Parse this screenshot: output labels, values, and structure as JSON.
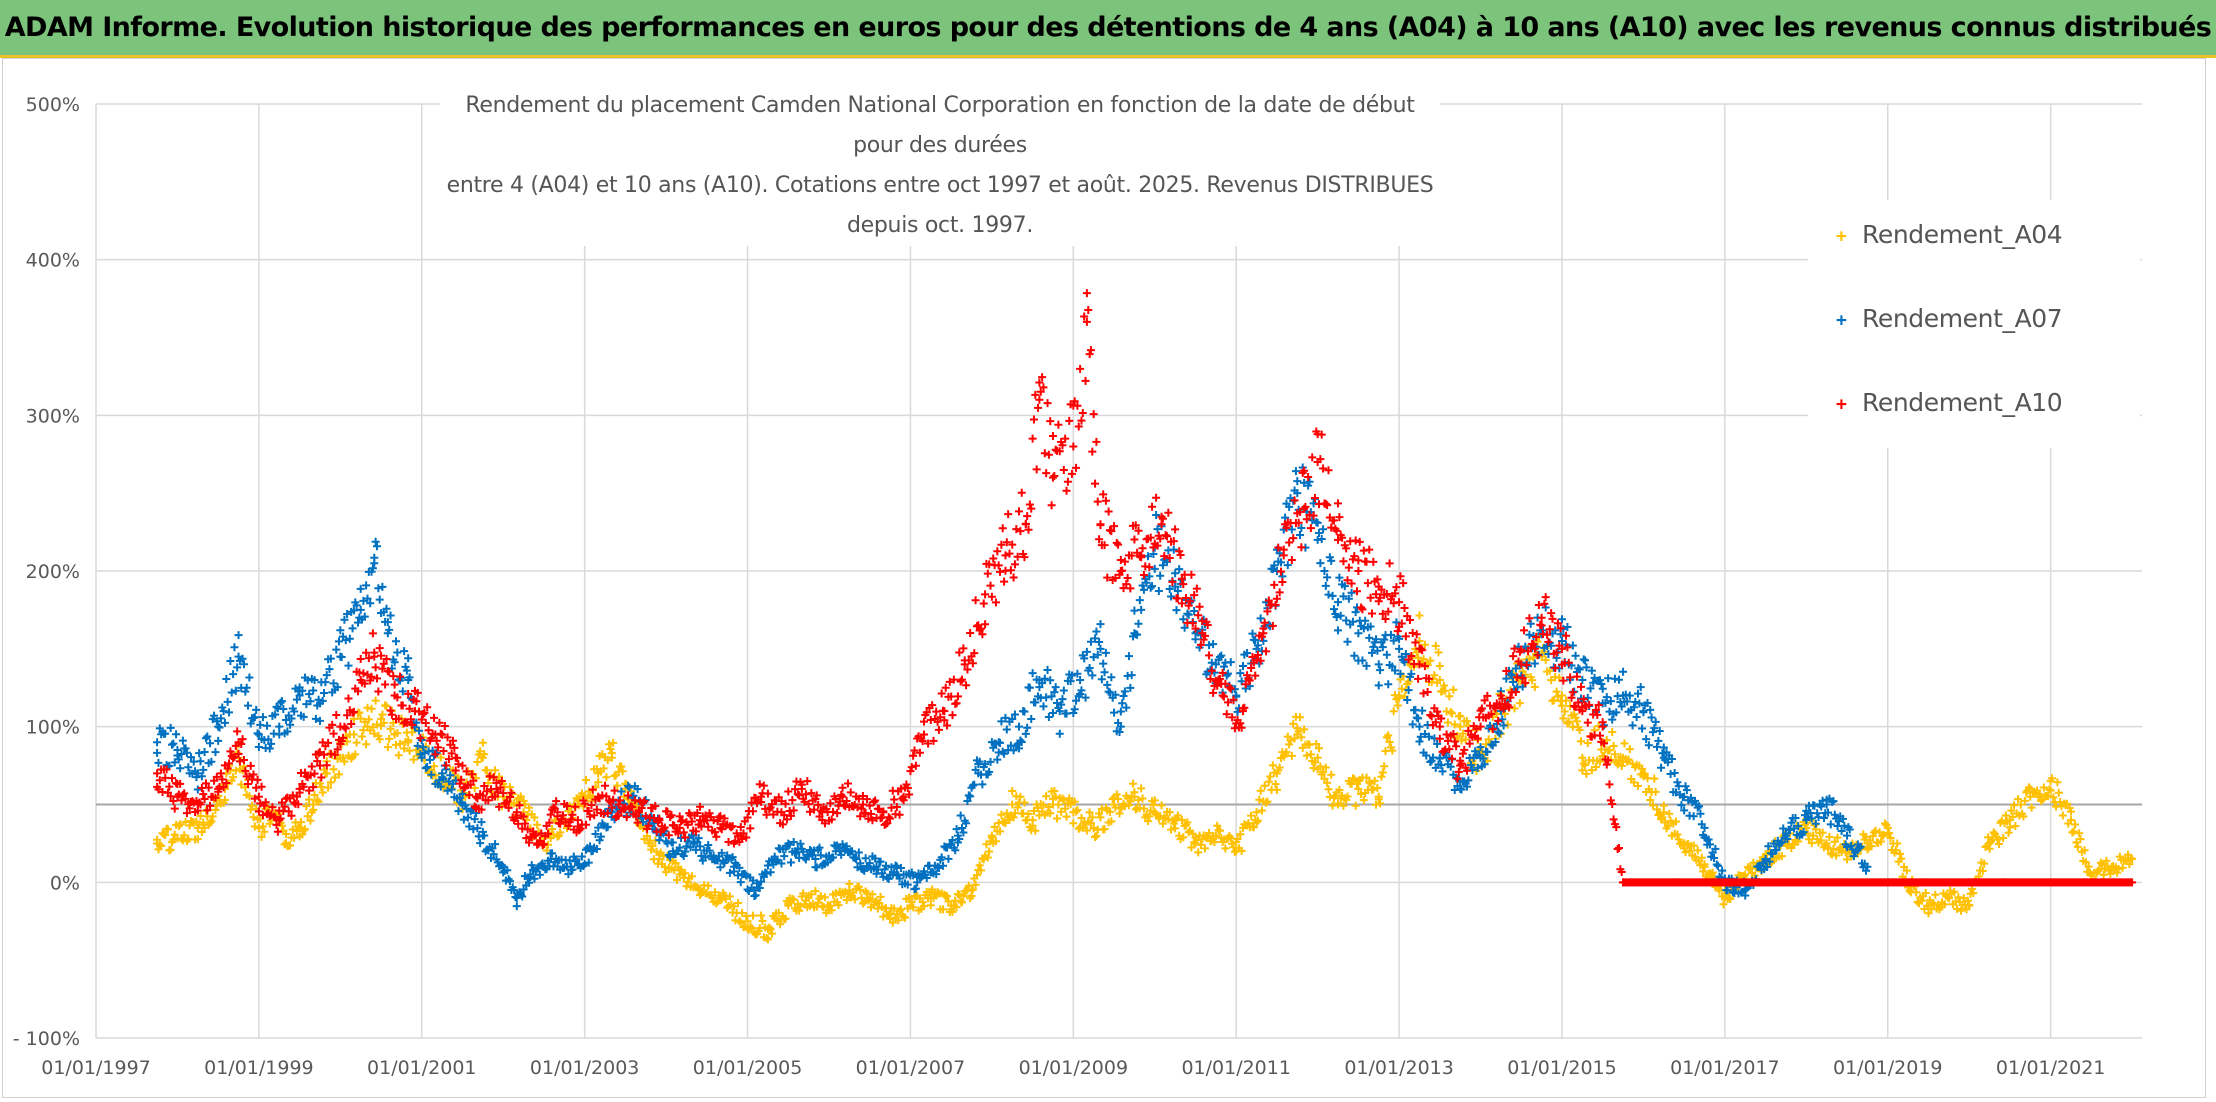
{
  "banner": {
    "title": "ADAM Informe. Evolution historique des performances en euros pour des détentions de 4 ans (A04) à 10 ans (A10) avec les revenus connus distribués"
  },
  "chart_data": {
    "type": "scatter",
    "title_line1": "Rendement du placement Camden National Corporation en fonction de la date de début pour des durées",
    "title_line2": "entre 4 (A04) et 10 ans (A10). Cotations entre oct 1997 et août. 2025. Revenus DISTRIBUES depuis oct. 1997.",
    "x_ticks": [
      "01/01/1997",
      "01/01/1999",
      "01/01/2001",
      "01/01/2003",
      "01/01/2005",
      "01/01/2007",
      "01/01/2009",
      "01/01/2011",
      "01/01/2013",
      "01/01/2015",
      "01/01/2017",
      "01/01/2019",
      "01/01/2021"
    ],
    "y_ticks": [
      "500%",
      "400%",
      "300%",
      "200%",
      "100%",
      "0%",
      "- 100%"
    ],
    "xlim": [
      "1997-01-01",
      "2022-02-15"
    ],
    "ylim": [
      -100,
      500
    ],
    "grid": true,
    "marker": "+",
    "legend_position": "right",
    "series": [
      {
        "name": "Rendement_A04",
        "color": "#ffc000",
        "values": [
          [
            "1997-10",
            25
          ],
          [
            "1998-04",
            35
          ],
          [
            "1998-08",
            60
          ],
          [
            "1998-10",
            80
          ],
          [
            "1999-01",
            35
          ],
          [
            "1999-03",
            45
          ],
          [
            "1999-05",
            25
          ],
          [
            "1999-07",
            35
          ],
          [
            "1999-09",
            50
          ],
          [
            "1999-11",
            70
          ],
          [
            "2000-01",
            80
          ],
          [
            "2000-03",
            95
          ],
          [
            "2000-05",
            100
          ],
          [
            "2000-07",
            105
          ],
          [
            "2000-09",
            95
          ],
          [
            "2000-11",
            90
          ],
          [
            "2001-01",
            85
          ],
          [
            "2001-04",
            70
          ],
          [
            "2001-07",
            55
          ],
          [
            "2001-10",
            80
          ],
          [
            "2002-01",
            55
          ],
          [
            "2002-04",
            45
          ],
          [
            "2002-07",
            25
          ],
          [
            "2002-10",
            40
          ],
          [
            "2003-01",
            55
          ],
          [
            "2003-03",
            70
          ],
          [
            "2003-05",
            80
          ],
          [
            "2003-07",
            60
          ],
          [
            "2003-09",
            40
          ],
          [
            "2003-12",
            15
          ],
          [
            "2004-03",
            5
          ],
          [
            "2004-06",
            -5
          ],
          [
            "2004-09",
            -10
          ],
          [
            "2005-01",
            -25
          ],
          [
            "2005-04",
            -30
          ],
          [
            "2005-07",
            -15
          ],
          [
            "2005-10",
            -10
          ],
          [
            "2006-01",
            -15
          ],
          [
            "2006-04",
            -5
          ],
          [
            "2006-07",
            -10
          ],
          [
            "2006-10",
            -20
          ],
          [
            "2007-01",
            -15
          ],
          [
            "2007-04",
            -10
          ],
          [
            "2007-07",
            -15
          ],
          [
            "2007-10",
            -5
          ],
          [
            "2008-01",
            30
          ],
          [
            "2008-04",
            50
          ],
          [
            "2008-07",
            40
          ],
          [
            "2008-10",
            50
          ],
          [
            "2009-01",
            45
          ],
          [
            "2009-04",
            35
          ],
          [
            "2009-07",
            50
          ],
          [
            "2009-10",
            55
          ],
          [
            "2010-01",
            45
          ],
          [
            "2010-04",
            40
          ],
          [
            "2010-07",
            25
          ],
          [
            "2010-10",
            30
          ],
          [
            "2011-01",
            20
          ],
          [
            "2011-04",
            45
          ],
          [
            "2011-07",
            70
          ],
          [
            "2011-10",
            95
          ],
          [
            "2012-01",
            80
          ],
          [
            "2012-04",
            50
          ],
          [
            "2012-07",
            60
          ],
          [
            "2012-10",
            55
          ],
          [
            "2013-01",
            120
          ],
          [
            "2013-04",
            155
          ],
          [
            "2013-07",
            130
          ],
          [
            "2013-10",
            100
          ],
          [
            "2014-01",
            80
          ],
          [
            "2014-04",
            110
          ],
          [
            "2014-07",
            130
          ],
          [
            "2014-10",
            145
          ],
          [
            "2015-01",
            120
          ],
          [
            "2015-04",
            80
          ],
          [
            "2015-07",
            90
          ],
          [
            "2015-10",
            80
          ],
          [
            "2016-01",
            70
          ],
          [
            "2016-04",
            45
          ],
          [
            "2016-07",
            25
          ],
          [
            "2016-10",
            10
          ],
          [
            "2017-01",
            -10
          ],
          [
            "2017-04",
            5
          ],
          [
            "2017-07",
            15
          ],
          [
            "2017-10",
            25
          ],
          [
            "2018-01",
            35
          ],
          [
            "2018-04",
            25
          ],
          [
            "2018-07",
            20
          ],
          [
            "2018-10",
            25
          ],
          [
            "2019-01",
            35
          ],
          [
            "2019-04",
            0
          ],
          [
            "2019-07",
            -15
          ],
          [
            "2019-10",
            -10
          ],
          [
            "2020-01",
            -15
          ],
          [
            "2020-04",
            25
          ],
          [
            "2020-07",
            40
          ],
          [
            "2020-10",
            55
          ],
          [
            "2021-01",
            65
          ],
          [
            "2021-04",
            40
          ],
          [
            "2021-07",
            5
          ],
          [
            "2021-10",
            10
          ],
          [
            "2022-01",
            15
          ]
        ]
      },
      {
        "name": "Rendement_A07",
        "color": "#0070c0",
        "values": [
          [
            "1997-10",
            90
          ],
          [
            "1998-01",
            85
          ],
          [
            "1998-04",
            70
          ],
          [
            "1998-07",
            100
          ],
          [
            "1998-10",
            145
          ],
          [
            "1999-01",
            95
          ],
          [
            "1999-04",
            100
          ],
          [
            "1999-07",
            120
          ],
          [
            "1999-10",
            115
          ],
          [
            "2000-01",
            145
          ],
          [
            "2000-04",
            175
          ],
          [
            "2000-06",
            205
          ],
          [
            "2000-08",
            160
          ],
          [
            "2000-11",
            130
          ],
          [
            "2001-01",
            80
          ],
          [
            "2001-04",
            70
          ],
          [
            "2001-07",
            50
          ],
          [
            "2001-10",
            30
          ],
          [
            "2002-01",
            10
          ],
          [
            "2002-03",
            -10
          ],
          [
            "2002-05",
            5
          ],
          [
            "2002-08",
            15
          ],
          [
            "2002-11",
            10
          ],
          [
            "2003-02",
            20
          ],
          [
            "2003-05",
            45
          ],
          [
            "2003-08",
            55
          ],
          [
            "2003-11",
            40
          ],
          [
            "2004-02",
            20
          ],
          [
            "2004-05",
            25
          ],
          [
            "2004-08",
            15
          ],
          [
            "2004-11",
            10
          ],
          [
            "2005-02",
            -5
          ],
          [
            "2005-05",
            15
          ],
          [
            "2005-08",
            20
          ],
          [
            "2005-11",
            15
          ],
          [
            "2006-02",
            20
          ],
          [
            "2006-05",
            15
          ],
          [
            "2006-08",
            10
          ],
          [
            "2006-11",
            5
          ],
          [
            "2007-02",
            0
          ],
          [
            "2007-05",
            10
          ],
          [
            "2007-08",
            30
          ],
          [
            "2007-11",
            70
          ],
          [
            "2008-02",
            90
          ],
          [
            "2008-05",
            100
          ],
          [
            "2008-08",
            130
          ],
          [
            "2008-11",
            110
          ],
          [
            "2009-02",
            130
          ],
          [
            "2009-05",
            150
          ],
          [
            "2009-08",
            100
          ],
          [
            "2009-10",
            160
          ],
          [
            "2010-01",
            215
          ],
          [
            "2010-04",
            190
          ],
          [
            "2010-07",
            160
          ],
          [
            "2010-10",
            140
          ],
          [
            "2011-01",
            120
          ],
          [
            "2011-04",
            150
          ],
          [
            "2011-07",
            200
          ],
          [
            "2011-10",
            250
          ],
          [
            "2012-01",
            220
          ],
          [
            "2012-04",
            180
          ],
          [
            "2012-07",
            160
          ],
          [
            "2012-10",
            140
          ],
          [
            "2013-01",
            150
          ],
          [
            "2013-04",
            100
          ],
          [
            "2013-07",
            80
          ],
          [
            "2013-10",
            60
          ],
          [
            "2014-01",
            80
          ],
          [
            "2014-04",
            110
          ],
          [
            "2014-07",
            140
          ],
          [
            "2014-10",
            160
          ],
          [
            "2015-01",
            155
          ],
          [
            "2015-04",
            130
          ],
          [
            "2015-07",
            115
          ],
          [
            "2015-10",
            120
          ],
          [
            "2016-01",
            110
          ],
          [
            "2016-04",
            80
          ],
          [
            "2016-07",
            55
          ],
          [
            "2016-10",
            35
          ],
          [
            "2017-01",
            0
          ],
          [
            "2017-04",
            -5
          ],
          [
            "2017-07",
            15
          ],
          [
            "2017-10",
            30
          ],
          [
            "2018-01",
            40
          ],
          [
            "2018-04",
            50
          ],
          [
            "2018-07",
            30
          ],
          [
            "2018-10",
            10
          ]
        ]
      },
      {
        "name": "Rendement_A10",
        "color": "#ff0000",
        "values": [
          [
            "1997-10",
            70
          ],
          [
            "1998-01",
            55
          ],
          [
            "1998-04",
            50
          ],
          [
            "1998-07",
            60
          ],
          [
            "1998-10",
            90
          ],
          [
            "1999-01",
            55
          ],
          [
            "1999-04",
            40
          ],
          [
            "1999-07",
            60
          ],
          [
            "1999-10",
            75
          ],
          [
            "2000-01",
            100
          ],
          [
            "2000-04",
            130
          ],
          [
            "2000-06",
            145
          ],
          [
            "2000-09",
            120
          ],
          [
            "2000-12",
            110
          ],
          [
            "2001-03",
            95
          ],
          [
            "2001-06",
            80
          ],
          [
            "2001-09",
            55
          ],
          [
            "2001-12",
            60
          ],
          [
            "2002-03",
            45
          ],
          [
            "2002-06",
            25
          ],
          [
            "2002-09",
            45
          ],
          [
            "2002-12",
            40
          ],
          [
            "2003-03",
            55
          ],
          [
            "2003-06",
            50
          ],
          [
            "2003-09",
            45
          ],
          [
            "2003-12",
            40
          ],
          [
            "2004-03",
            35
          ],
          [
            "2004-06",
            40
          ],
          [
            "2004-09",
            35
          ],
          [
            "2004-12",
            30
          ],
          [
            "2005-03",
            55
          ],
          [
            "2005-06",
            45
          ],
          [
            "2005-09",
            60
          ],
          [
            "2005-12",
            45
          ],
          [
            "2006-03",
            55
          ],
          [
            "2006-06",
            50
          ],
          [
            "2006-09",
            45
          ],
          [
            "2006-12",
            55
          ],
          [
            "2007-03",
            95
          ],
          [
            "2007-06",
            110
          ],
          [
            "2007-09",
            140
          ],
          [
            "2007-12",
            185
          ],
          [
            "2008-03",
            210
          ],
          [
            "2008-06",
            230
          ],
          [
            "2008-08",
            310
          ],
          [
            "2008-10",
            260
          ],
          [
            "2009-01",
            280
          ],
          [
            "2009-03",
            360
          ],
          [
            "2009-05",
            230
          ],
          [
            "2009-08",
            200
          ],
          [
            "2009-11",
            210
          ],
          [
            "2010-02",
            230
          ],
          [
            "2010-05",
            195
          ],
          [
            "2010-08",
            160
          ],
          [
            "2010-11",
            120
          ],
          [
            "2011-02",
            110
          ],
          [
            "2011-05",
            160
          ],
          [
            "2011-08",
            210
          ],
          [
            "2011-11",
            240
          ],
          [
            "2012-01",
            270
          ],
          [
            "2012-04",
            220
          ],
          [
            "2012-07",
            200
          ],
          [
            "2012-10",
            190
          ],
          [
            "2013-01",
            180
          ],
          [
            "2013-04",
            140
          ],
          [
            "2013-07",
            100
          ],
          [
            "2013-10",
            75
          ],
          [
            "2014-01",
            100
          ],
          [
            "2014-04",
            120
          ],
          [
            "2014-07",
            140
          ],
          [
            "2014-10",
            170
          ],
          [
            "2015-01",
            150
          ],
          [
            "2015-04",
            110
          ],
          [
            "2015-07",
            100
          ],
          [
            "2015-10",
            0
          ],
          [
            "2016-06",
            0
          ],
          [
            "2017-01",
            0
          ],
          [
            "2017-06",
            0
          ],
          [
            "2018-01",
            0
          ],
          [
            "2018-06",
            0
          ],
          [
            "2019-01",
            0
          ],
          [
            "2019-06",
            0
          ],
          [
            "2020-01",
            0
          ],
          [
            "2020-06",
            0
          ],
          [
            "2021-01",
            0
          ],
          [
            "2021-06",
            0
          ],
          [
            "2022-01",
            0
          ]
        ]
      }
    ]
  }
}
